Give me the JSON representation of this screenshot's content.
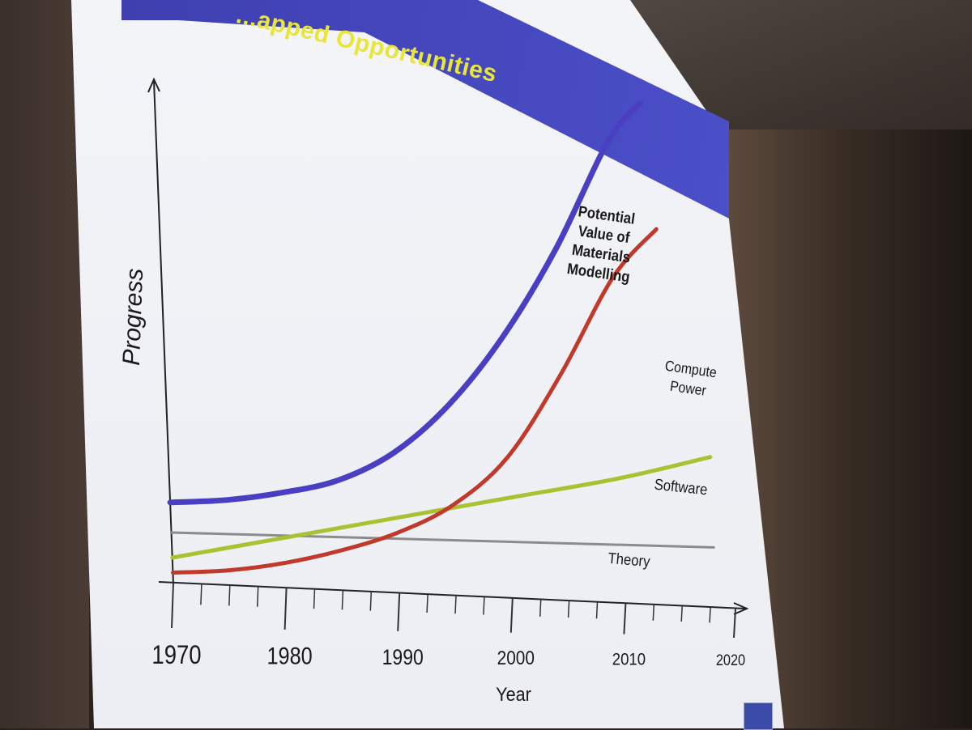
{
  "slide": {
    "title": "...apped Opportunities"
  },
  "chart_data": {
    "type": "line",
    "title": "",
    "xlabel": "Year",
    "ylabel": "Progress",
    "xlim": [
      1970,
      2020
    ],
    "ylim": [
      0,
      100
    ],
    "x_ticks": [
      1970,
      1980,
      1990,
      2000,
      2010,
      2020
    ],
    "grid": false,
    "legend": "none",
    "series": [
      {
        "name": "Potential Value of Materials Modelling",
        "color": "#4a3fc2",
        "x": [
          1970,
          1975,
          1980,
          1985,
          1990,
          1995,
          2000,
          2005,
          2010,
          2013
        ],
        "y": [
          16,
          17,
          19,
          22,
          28,
          38,
          52,
          70,
          92,
          100
        ]
      },
      {
        "name": "Compute Power",
        "color": "#c0392b",
        "x": [
          1970,
          1975,
          1980,
          1985,
          1990,
          1995,
          2000,
          2005,
          2010,
          2014
        ],
        "y": [
          2,
          3,
          5,
          8,
          12,
          18,
          28,
          45,
          65,
          75
        ]
      },
      {
        "name": "Software",
        "color": "#a8c232",
        "x": [
          1970,
          1980,
          1990,
          2000,
          2010,
          2018
        ],
        "y": [
          5,
          10,
          15,
          20,
          25,
          30
        ]
      },
      {
        "name": "Theory",
        "color": "#8c8c8c",
        "x": [
          1970,
          2018
        ],
        "y": [
          10,
          12
        ]
      }
    ],
    "annotations": [
      {
        "series": "Potential Value of Materials Modelling",
        "lines": [
          "Potential",
          "Value of",
          "Materials",
          "Modelling"
        ]
      },
      {
        "series": "Compute Power",
        "lines": [
          "Compute",
          "Power"
        ]
      },
      {
        "series": "Software",
        "lines": [
          "Software"
        ]
      },
      {
        "series": "Theory",
        "lines": [
          "Theory"
        ]
      }
    ]
  }
}
